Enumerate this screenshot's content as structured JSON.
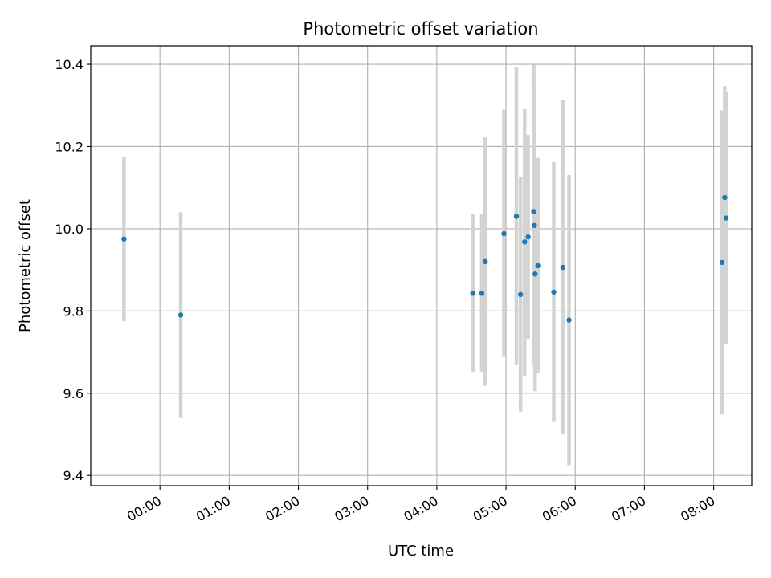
{
  "chart_data": {
    "type": "scatter",
    "title": "Photometric offset variation",
    "xlabel": "UTC time",
    "ylabel": "Photometric offset",
    "grid": true,
    "x_unit": "hours (UTC)",
    "xlim": [
      -1.0,
      8.55
    ],
    "ylim": [
      9.375,
      10.445
    ],
    "x_ticks": [
      {
        "value": 0,
        "label": "00:00"
      },
      {
        "value": 1,
        "label": "01:00"
      },
      {
        "value": 2,
        "label": "02:00"
      },
      {
        "value": 3,
        "label": "03:00"
      },
      {
        "value": 4,
        "label": "04:00"
      },
      {
        "value": 5,
        "label": "05:00"
      },
      {
        "value": 6,
        "label": "06:00"
      },
      {
        "value": 7,
        "label": "07:00"
      },
      {
        "value": 8,
        "label": "08:00"
      }
    ],
    "y_ticks": [
      {
        "value": 9.4,
        "label": "9.4"
      },
      {
        "value": 9.6,
        "label": "9.6"
      },
      {
        "value": 9.8,
        "label": "9.8"
      },
      {
        "value": 10.0,
        "label": "10.0"
      },
      {
        "value": 10.2,
        "label": "10.2"
      },
      {
        "value": 10.4,
        "label": "10.4"
      }
    ],
    "series": [
      {
        "point_color": "#1f77b4",
        "errorbar_color": "#d3d3d3",
        "points": [
          {
            "x": -0.52,
            "y": 9.975,
            "ylow": 9.775,
            "yhigh": 10.175
          },
          {
            "x": 0.3,
            "y": 9.79,
            "ylow": 9.54,
            "yhigh": 10.04
          },
          {
            "x": 4.52,
            "y": 9.843,
            "ylow": 9.65,
            "yhigh": 10.035
          },
          {
            "x": 4.65,
            "y": 9.843,
            "ylow": 9.652,
            "yhigh": 10.035
          },
          {
            "x": 4.7,
            "y": 9.92,
            "ylow": 9.618,
            "yhigh": 10.222
          },
          {
            "x": 4.97,
            "y": 9.988,
            "ylow": 9.688,
            "yhigh": 10.29
          },
          {
            "x": 5.15,
            "y": 10.03,
            "ylow": 9.668,
            "yhigh": 10.392
          },
          {
            "x": 5.21,
            "y": 9.84,
            "ylow": 9.555,
            "yhigh": 10.127
          },
          {
            "x": 5.27,
            "y": 9.968,
            "ylow": 9.642,
            "yhigh": 10.291
          },
          {
            "x": 5.32,
            "y": 9.98,
            "ylow": 9.732,
            "yhigh": 10.228
          },
          {
            "x": 5.4,
            "y": 10.042,
            "ylow": 9.685,
            "yhigh": 10.399
          },
          {
            "x": 5.41,
            "y": 10.008,
            "ylow": 9.665,
            "yhigh": 10.35
          },
          {
            "x": 5.42,
            "y": 9.89,
            "ylow": 9.605,
            "yhigh": 10.175
          },
          {
            "x": 5.46,
            "y": 9.91,
            "ylow": 9.648,
            "yhigh": 10.172
          },
          {
            "x": 5.69,
            "y": 9.846,
            "ylow": 9.53,
            "yhigh": 10.162
          },
          {
            "x": 5.82,
            "y": 9.906,
            "ylow": 9.5,
            "yhigh": 10.314
          },
          {
            "x": 5.91,
            "y": 9.778,
            "ylow": 9.425,
            "yhigh": 10.131
          },
          {
            "x": 8.12,
            "y": 9.918,
            "ylow": 9.548,
            "yhigh": 10.288
          },
          {
            "x": 8.16,
            "y": 10.076,
            "ylow": 9.805,
            "yhigh": 10.347
          },
          {
            "x": 8.18,
            "y": 10.026,
            "ylow": 9.72,
            "yhigh": 10.332
          }
        ]
      }
    ]
  }
}
